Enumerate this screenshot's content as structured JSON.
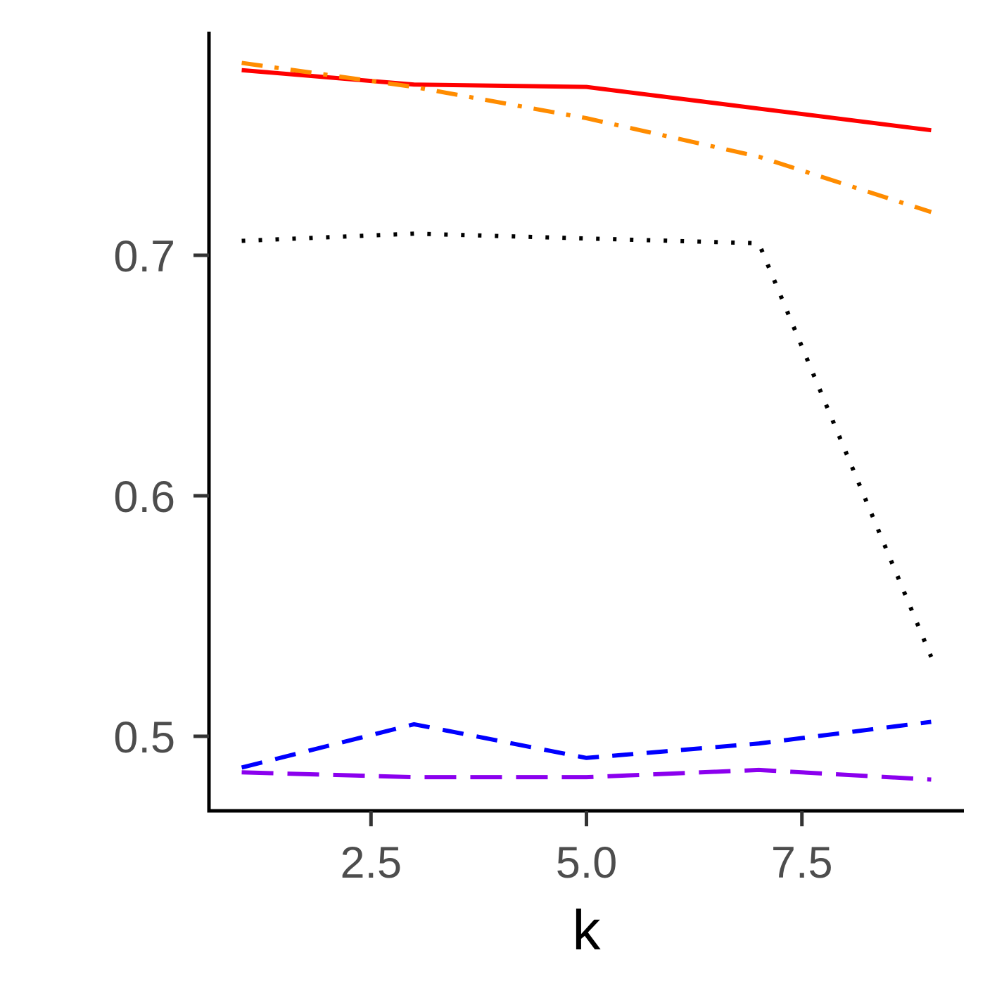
{
  "chart_data": {
    "type": "line",
    "title": "",
    "xlabel": "k",
    "ylabel": "",
    "xlim": [
      0.62,
      9.38
    ],
    "ylim": [
      0.469,
      0.793
    ],
    "x_ticks": [
      2.5,
      5.0,
      7.5
    ],
    "x_tick_labels": [
      "2.5",
      "5.0",
      "7.5"
    ],
    "y_ticks": [
      0.5,
      0.6,
      0.7
    ],
    "y_tick_labels": [
      "0.5",
      "0.6",
      "0.7"
    ],
    "grid": false,
    "legend": "none",
    "x": [
      1,
      3,
      5,
      7,
      9
    ],
    "series": [
      {
        "color": "#FF0000",
        "dash": "solid",
        "values": [
          0.777,
          0.771,
          0.77,
          0.761,
          0.752
        ]
      },
      {
        "color": "#FF8C00",
        "dash": "dashdot",
        "values": [
          0.78,
          0.77,
          0.757,
          0.741,
          0.718
        ]
      },
      {
        "color": "#000000",
        "dash": "dotted",
        "values": [
          0.706,
          0.709,
          0.707,
          0.705,
          0.533
        ]
      },
      {
        "color": "#0000FF",
        "dash": "dashed",
        "values": [
          0.487,
          0.505,
          0.491,
          0.497,
          0.506
        ]
      },
      {
        "color": "#8B00EE",
        "dash": "longdash",
        "values": [
          0.485,
          0.483,
          0.483,
          0.486,
          0.482
        ]
      }
    ]
  }
}
